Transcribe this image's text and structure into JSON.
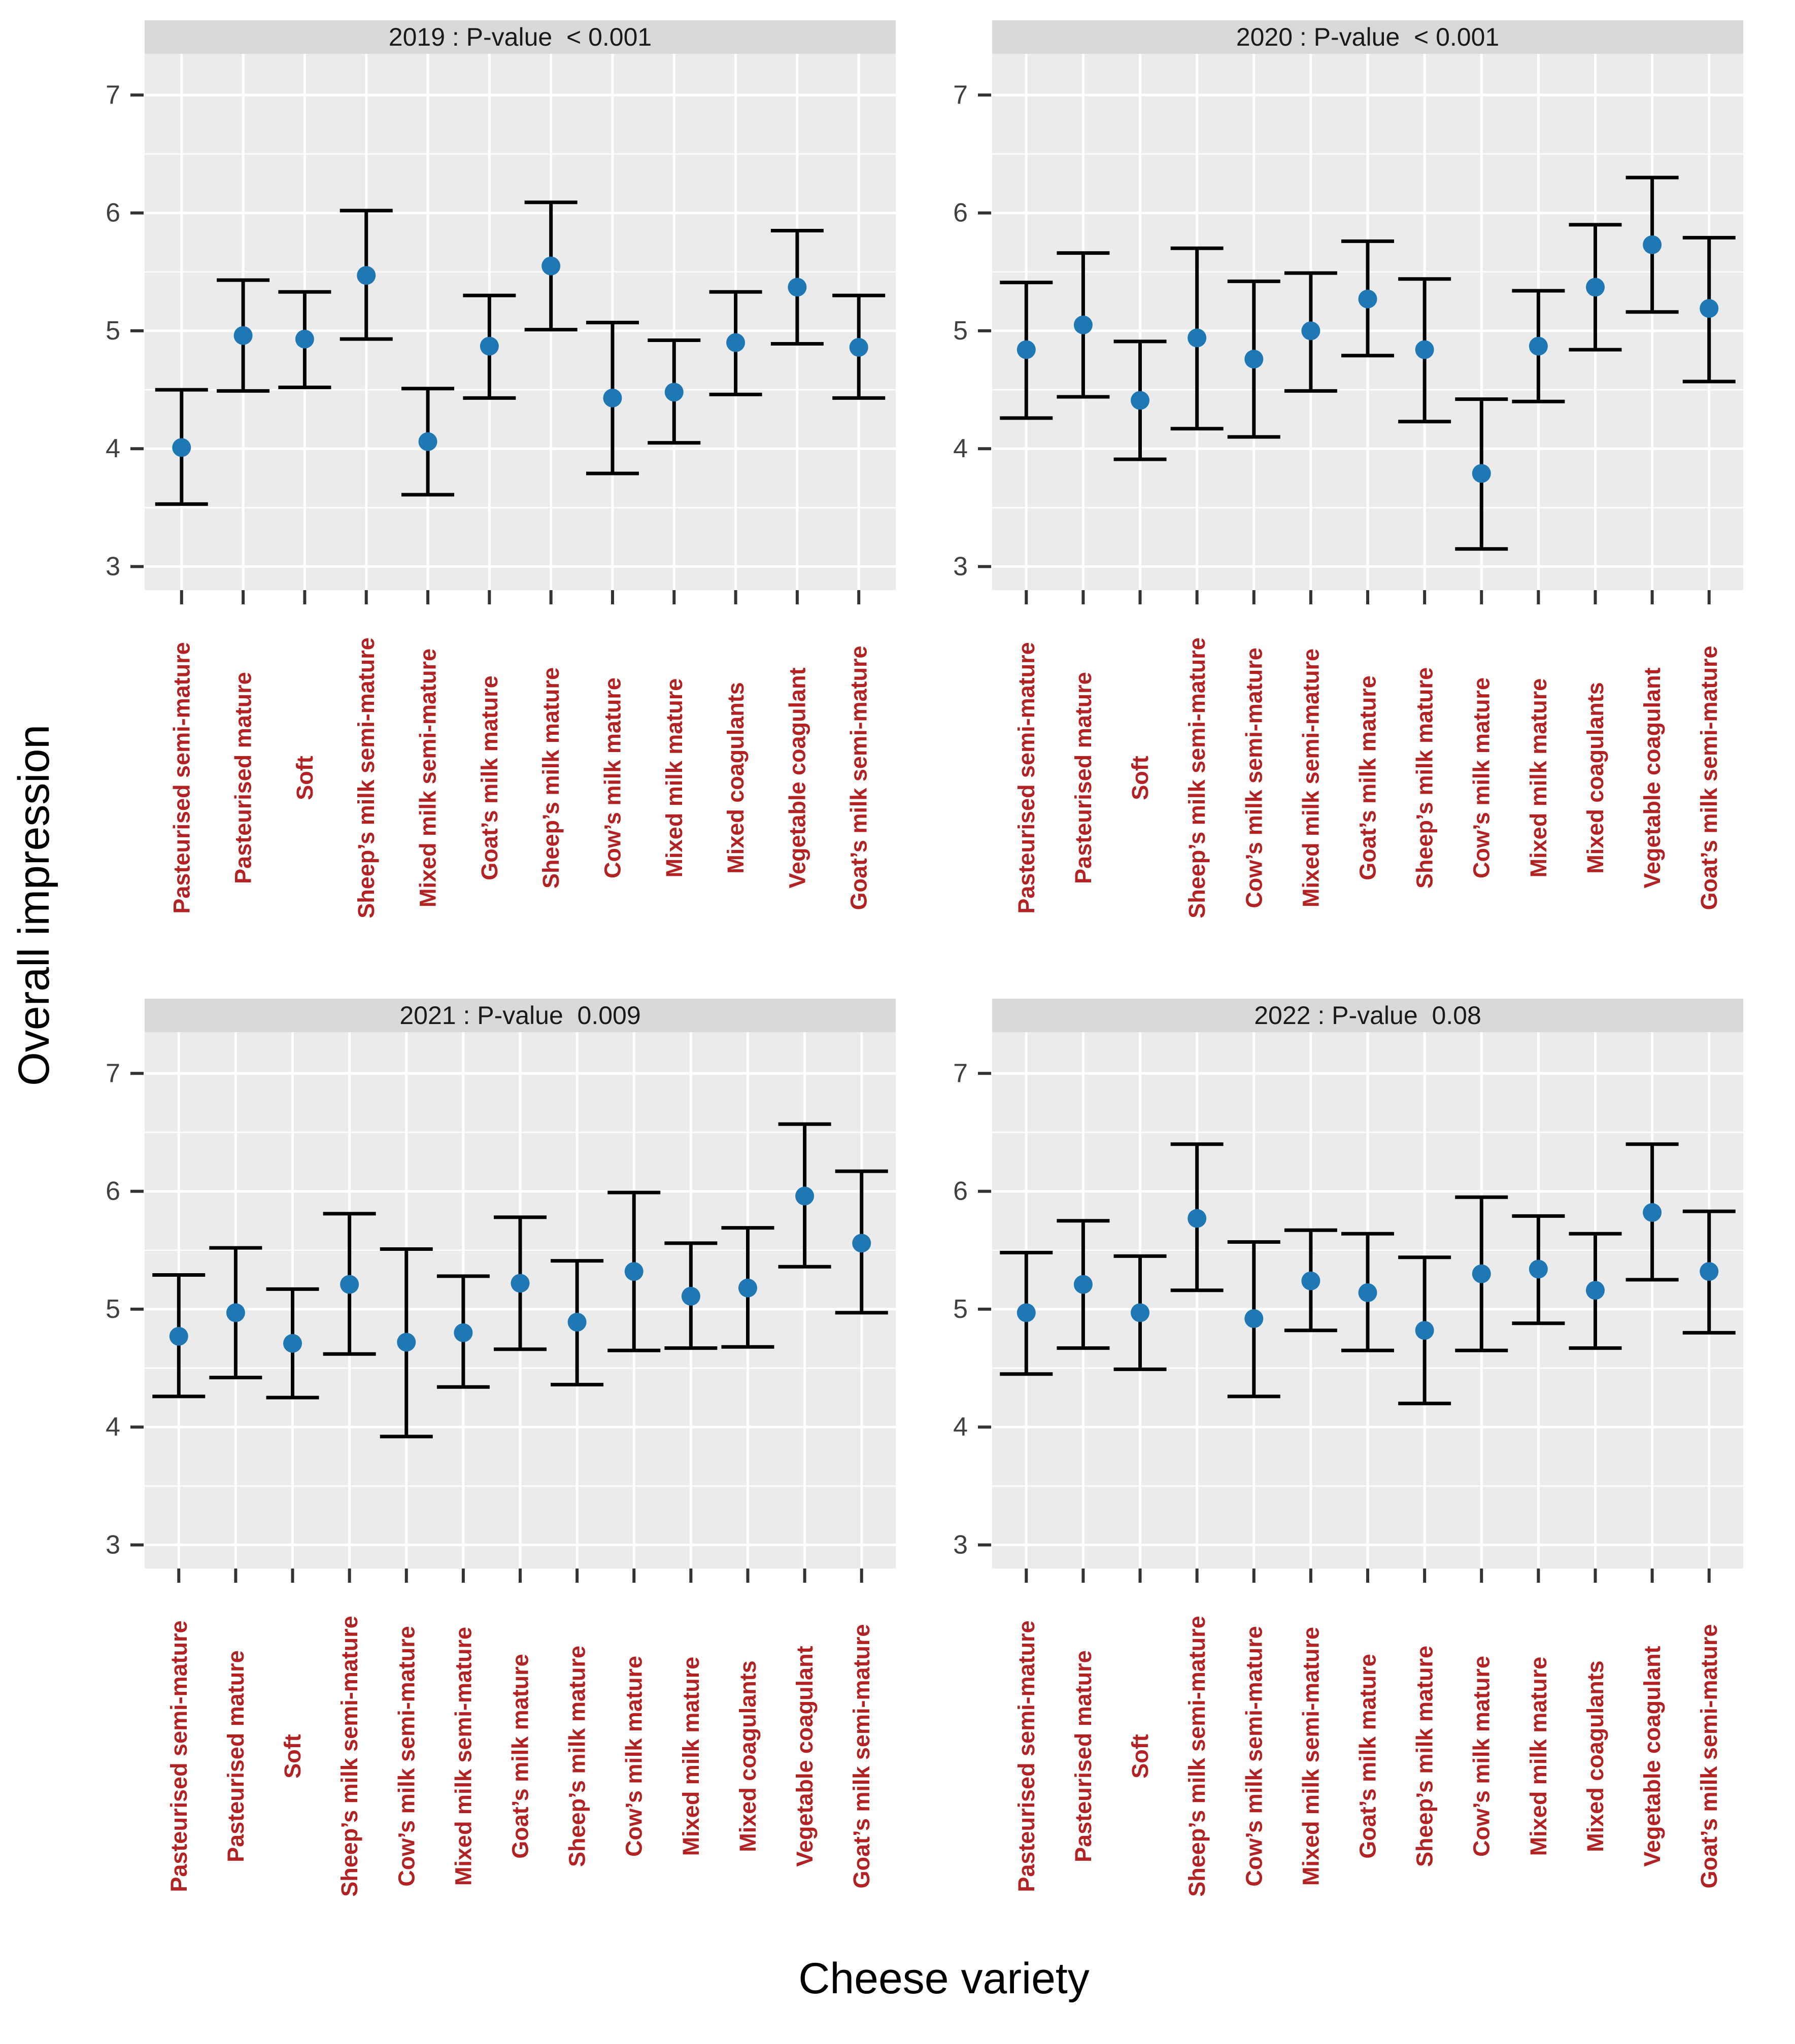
{
  "figure": {
    "y_axis_title": "Overall impression",
    "x_axis_title": "Cheese variety",
    "y_ticks": [
      3,
      4,
      5,
      6,
      7
    ],
    "y_minor_ticks": [
      3.5,
      4.5,
      5.5,
      6.5
    ],
    "ylim": [
      2.8,
      7.35
    ],
    "legend": "none",
    "grid": "on",
    "colors": {
      "point": "#1f77b4",
      "error_bar": "#000000",
      "category_label": "#b22222",
      "strip_bg": "#d9d9d9",
      "panel_bg": "#ebebeb",
      "grid": "#ffffff",
      "tick": "#333333",
      "axis_text": "#404040",
      "title_text": "#000000"
    }
  },
  "chart_data": [
    {
      "type": "scatter",
      "facet": "2019 : P-value  < 0.001",
      "categories": [
        "Pasteurised semi-mature",
        "Pasteurised mature",
        "Soft",
        "Sheep’s milk semi-mature",
        "Mixed milk semi-mature",
        "Goat’s milk mature",
        "Sheep’s milk mature",
        "Cow’s milk mature",
        "Mixed milk mature",
        "Mixed coagulants",
        "Vegetable coagulant",
        "Goat’s milk semi-mature"
      ],
      "means": [
        4.01,
        4.96,
        4.93,
        5.47,
        4.06,
        4.87,
        5.55,
        4.43,
        4.48,
        4.9,
        5.37,
        4.86
      ],
      "ci_low": [
        3.53,
        4.49,
        4.52,
        4.93,
        3.61,
        4.43,
        5.01,
        3.79,
        4.05,
        4.46,
        4.89,
        4.43
      ],
      "ci_high": [
        4.5,
        5.43,
        5.33,
        6.02,
        4.51,
        5.3,
        6.09,
        5.07,
        4.92,
        5.33,
        5.85,
        5.3
      ]
    },
    {
      "type": "scatter",
      "facet": "2020 : P-value  < 0.001",
      "categories": [
        "Pasteurised semi-mature",
        "Pasteurised mature",
        "Soft",
        "Sheep’s milk semi-mature",
        "Cow’s milk semi-mature",
        "Mixed milk semi-mature",
        "Goat’s milk mature",
        "Sheep’s milk mature",
        "Cow’s milk mature",
        "Mixed milk mature",
        "Mixed coagulants",
        "Vegetable coagulant",
        "Goat’s milk semi-mature"
      ],
      "means": [
        4.84,
        5.05,
        4.41,
        4.94,
        4.76,
        5.0,
        5.27,
        4.84,
        3.79,
        4.87,
        5.37,
        5.73,
        5.19
      ],
      "ci_low": [
        4.26,
        4.44,
        3.91,
        4.17,
        4.1,
        4.49,
        4.79,
        4.23,
        3.15,
        4.4,
        4.84,
        5.16,
        4.57
      ],
      "ci_high": [
        5.41,
        5.66,
        4.91,
        5.7,
        5.42,
        5.49,
        5.76,
        5.44,
        4.42,
        5.34,
        5.9,
        6.3,
        5.79
      ]
    },
    {
      "type": "scatter",
      "facet": "2021 : P-value  0.009",
      "categories": [
        "Pasteurised semi-mature",
        "Pasteurised mature",
        "Soft",
        "Sheep’s milk semi-mature",
        "Cow’s milk semi-mature",
        "Mixed milk semi-mature",
        "Goat’s milk mature",
        "Sheep’s milk mature",
        "Cow’s milk mature",
        "Mixed milk mature",
        "Mixed coagulants",
        "Vegetable coagulant",
        "Goat’s milk semi-mature"
      ],
      "means": [
        4.77,
        4.97,
        4.71,
        5.21,
        4.72,
        4.8,
        5.22,
        4.89,
        5.32,
        5.11,
        5.18,
        5.96,
        5.56
      ],
      "ci_low": [
        4.26,
        4.42,
        4.25,
        4.62,
        3.92,
        4.34,
        4.66,
        4.36,
        4.65,
        4.67,
        4.68,
        5.36,
        4.97
      ],
      "ci_high": [
        5.29,
        5.52,
        5.17,
        5.81,
        5.51,
        5.28,
        5.78,
        5.41,
        5.99,
        5.56,
        5.69,
        6.57,
        6.17
      ]
    },
    {
      "type": "scatter",
      "facet": "2022 : P-value  0.08",
      "categories": [
        "Pasteurised semi-mature",
        "Pasteurised mature",
        "Soft",
        "Sheep’s milk semi-mature",
        "Cow’s milk semi-mature",
        "Mixed milk semi-mature",
        "Goat’s milk mature",
        "Sheep’s milk mature",
        "Cow’s milk mature",
        "Mixed milk mature",
        "Mixed coagulants",
        "Vegetable coagulant",
        "Goat’s milk semi-mature"
      ],
      "means": [
        4.97,
        5.21,
        4.97,
        5.77,
        4.92,
        5.24,
        5.14,
        4.82,
        5.3,
        5.34,
        5.16,
        5.82,
        5.32
      ],
      "ci_low": [
        4.45,
        4.67,
        4.49,
        5.16,
        4.26,
        4.82,
        4.65,
        4.2,
        4.65,
        4.88,
        4.67,
        5.25,
        4.8
      ],
      "ci_high": [
        5.48,
        5.75,
        5.45,
        6.4,
        5.57,
        5.67,
        5.64,
        5.44,
        5.95,
        5.79,
        5.64,
        6.4,
        5.83
      ]
    }
  ]
}
